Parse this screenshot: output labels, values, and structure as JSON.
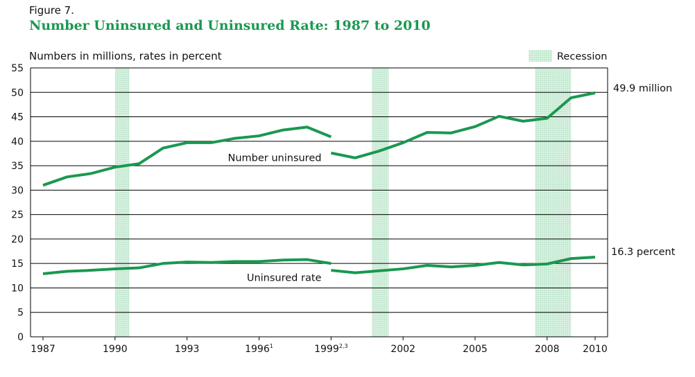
{
  "figure_label": "Figure 7.",
  "title": "Number Uninsured and Uninsured Rate: 1987 to 2010",
  "units_note": "Numbers in millions, rates in percent",
  "colors": {
    "line": "#1a9850",
    "recession_fill": "#c9ebd5",
    "title": "#1a9850"
  },
  "chart_data": {
    "type": "line",
    "title": "Number Uninsured and Uninsured Rate: 1987 to 2010",
    "ylabel": "Numbers in millions, rates in percent",
    "xlim": [
      1987,
      2010
    ],
    "ylim": [
      0,
      55
    ],
    "yticks": [
      0,
      5,
      10,
      15,
      20,
      25,
      30,
      35,
      40,
      45,
      50,
      55
    ],
    "xticks": [
      {
        "value": 1987,
        "label": "1987",
        "sup": ""
      },
      {
        "value": 1990,
        "label": "1990",
        "sup": ""
      },
      {
        "value": 1993,
        "label": "1993",
        "sup": ""
      },
      {
        "value": 1996,
        "label": "1996",
        "sup": "1"
      },
      {
        "value": 1999,
        "label": "1999",
        "sup": "2,3"
      },
      {
        "value": 2002,
        "label": "2002",
        "sup": ""
      },
      {
        "value": 2005,
        "label": "2005",
        "sup": ""
      },
      {
        "value": 2008,
        "label": "2008",
        "sup": ""
      },
      {
        "value": 2010,
        "label": "2010",
        "sup": ""
      }
    ],
    "grid": true,
    "legend": {
      "label": "Recession",
      "position": "top-right"
    },
    "recessions": [
      [
        1990,
        1990.6
      ],
      [
        2000.7,
        2001.4
      ],
      [
        2007.5,
        2009
      ]
    ],
    "series": [
      {
        "name": "Number uninsured",
        "segments": [
          {
            "x": [
              1987,
              1988,
              1989,
              1990,
              1991,
              1992,
              1993,
              1994,
              1995,
              1996,
              1997,
              1998,
              1999
            ],
            "y": [
              31.0,
              32.7,
              33.4,
              34.7,
              35.4,
              38.6,
              39.7,
              39.7,
              40.6,
              41.1,
              42.3,
              42.9,
              40.9
            ]
          },
          {
            "x": [
              1999,
              2000,
              2001,
              2002,
              2003,
              2004,
              2005,
              2006,
              2007,
              2008,
              2009,
              2010
            ],
            "y": [
              37.6,
              36.6,
              38.0,
              39.7,
              41.8,
              41.7,
              43.0,
              45.1,
              44.1,
              44.7,
              48.9,
              49.9
            ]
          }
        ],
        "end_label": "49.9 million"
      },
      {
        "name": "Uninsured rate",
        "segments": [
          {
            "x": [
              1987,
              1988,
              1989,
              1990,
              1991,
              1992,
              1993,
              1994,
              1995,
              1996,
              1997,
              1998,
              1999
            ],
            "y": [
              12.9,
              13.4,
              13.6,
              13.9,
              14.1,
              15.0,
              15.3,
              15.2,
              15.4,
              15.4,
              15.7,
              15.8,
              15.0
            ]
          },
          {
            "x": [
              1999,
              2000,
              2001,
              2002,
              2003,
              2004,
              2005,
              2006,
              2007,
              2008,
              2009,
              2010
            ],
            "y": [
              13.6,
              13.1,
              13.5,
              13.9,
              14.6,
              14.3,
              14.6,
              15.2,
              14.7,
              14.9,
              16.0,
              16.3
            ]
          }
        ],
        "end_label": "16.3 percent"
      }
    ]
  }
}
